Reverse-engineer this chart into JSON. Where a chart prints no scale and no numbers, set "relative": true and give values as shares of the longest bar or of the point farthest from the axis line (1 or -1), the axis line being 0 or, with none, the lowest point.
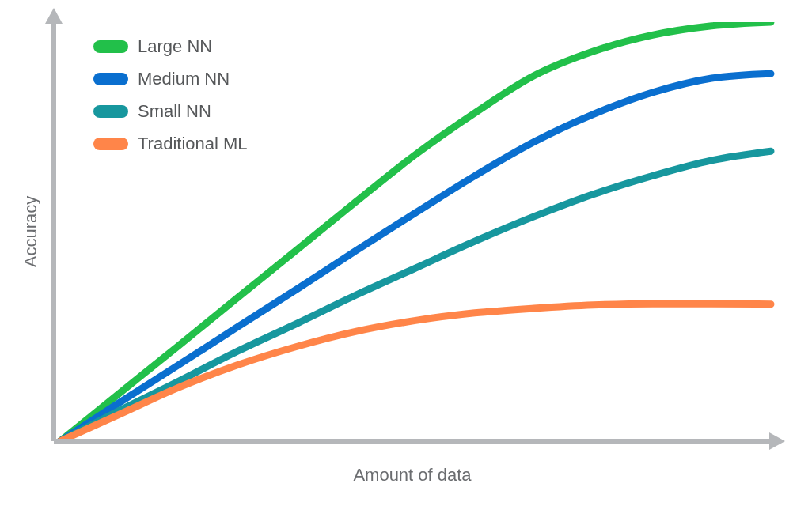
{
  "chart_data": {
    "type": "line",
    "relative": true,
    "xlabel": "Amount of data",
    "ylabel": "Accuracy",
    "categories": [
      null,
      null,
      null,
      null,
      null,
      null,
      null,
      null,
      null,
      null,
      null,
      null,
      null
    ],
    "series": [
      {
        "name": "Large NN",
        "color": "#22c04a",
        "values": [
          0,
          0.114,
          0.228,
          0.343,
          0.457,
          0.572,
          0.684,
          0.783,
          0.872,
          0.93,
          0.969,
          0.991,
          1
        ]
      },
      {
        "name": "Medium NN",
        "color": "#0a6fcf",
        "values": [
          0,
          0.092,
          0.182,
          0.273,
          0.363,
          0.455,
          0.545,
          0.633,
          0.714,
          0.78,
          0.832,
          0.866,
          0.877
        ]
      },
      {
        "name": "Small NN",
        "color": "#17979e",
        "values": [
          0,
          0.073,
          0.143,
          0.215,
          0.281,
          0.349,
          0.413,
          0.477,
          0.536,
          0.589,
          0.633,
          0.67,
          0.692
        ]
      },
      {
        "name": "Traditional ML",
        "color": "#ff8549",
        "values": [
          0,
          0.064,
          0.128,
          0.182,
          0.226,
          0.262,
          0.288,
          0.306,
          0.317,
          0.325,
          0.328,
          0.328,
          0.327
        ]
      }
    ],
    "legend": "top left",
    "grid": false,
    "marker": "none",
    "line_style": "solid"
  }
}
